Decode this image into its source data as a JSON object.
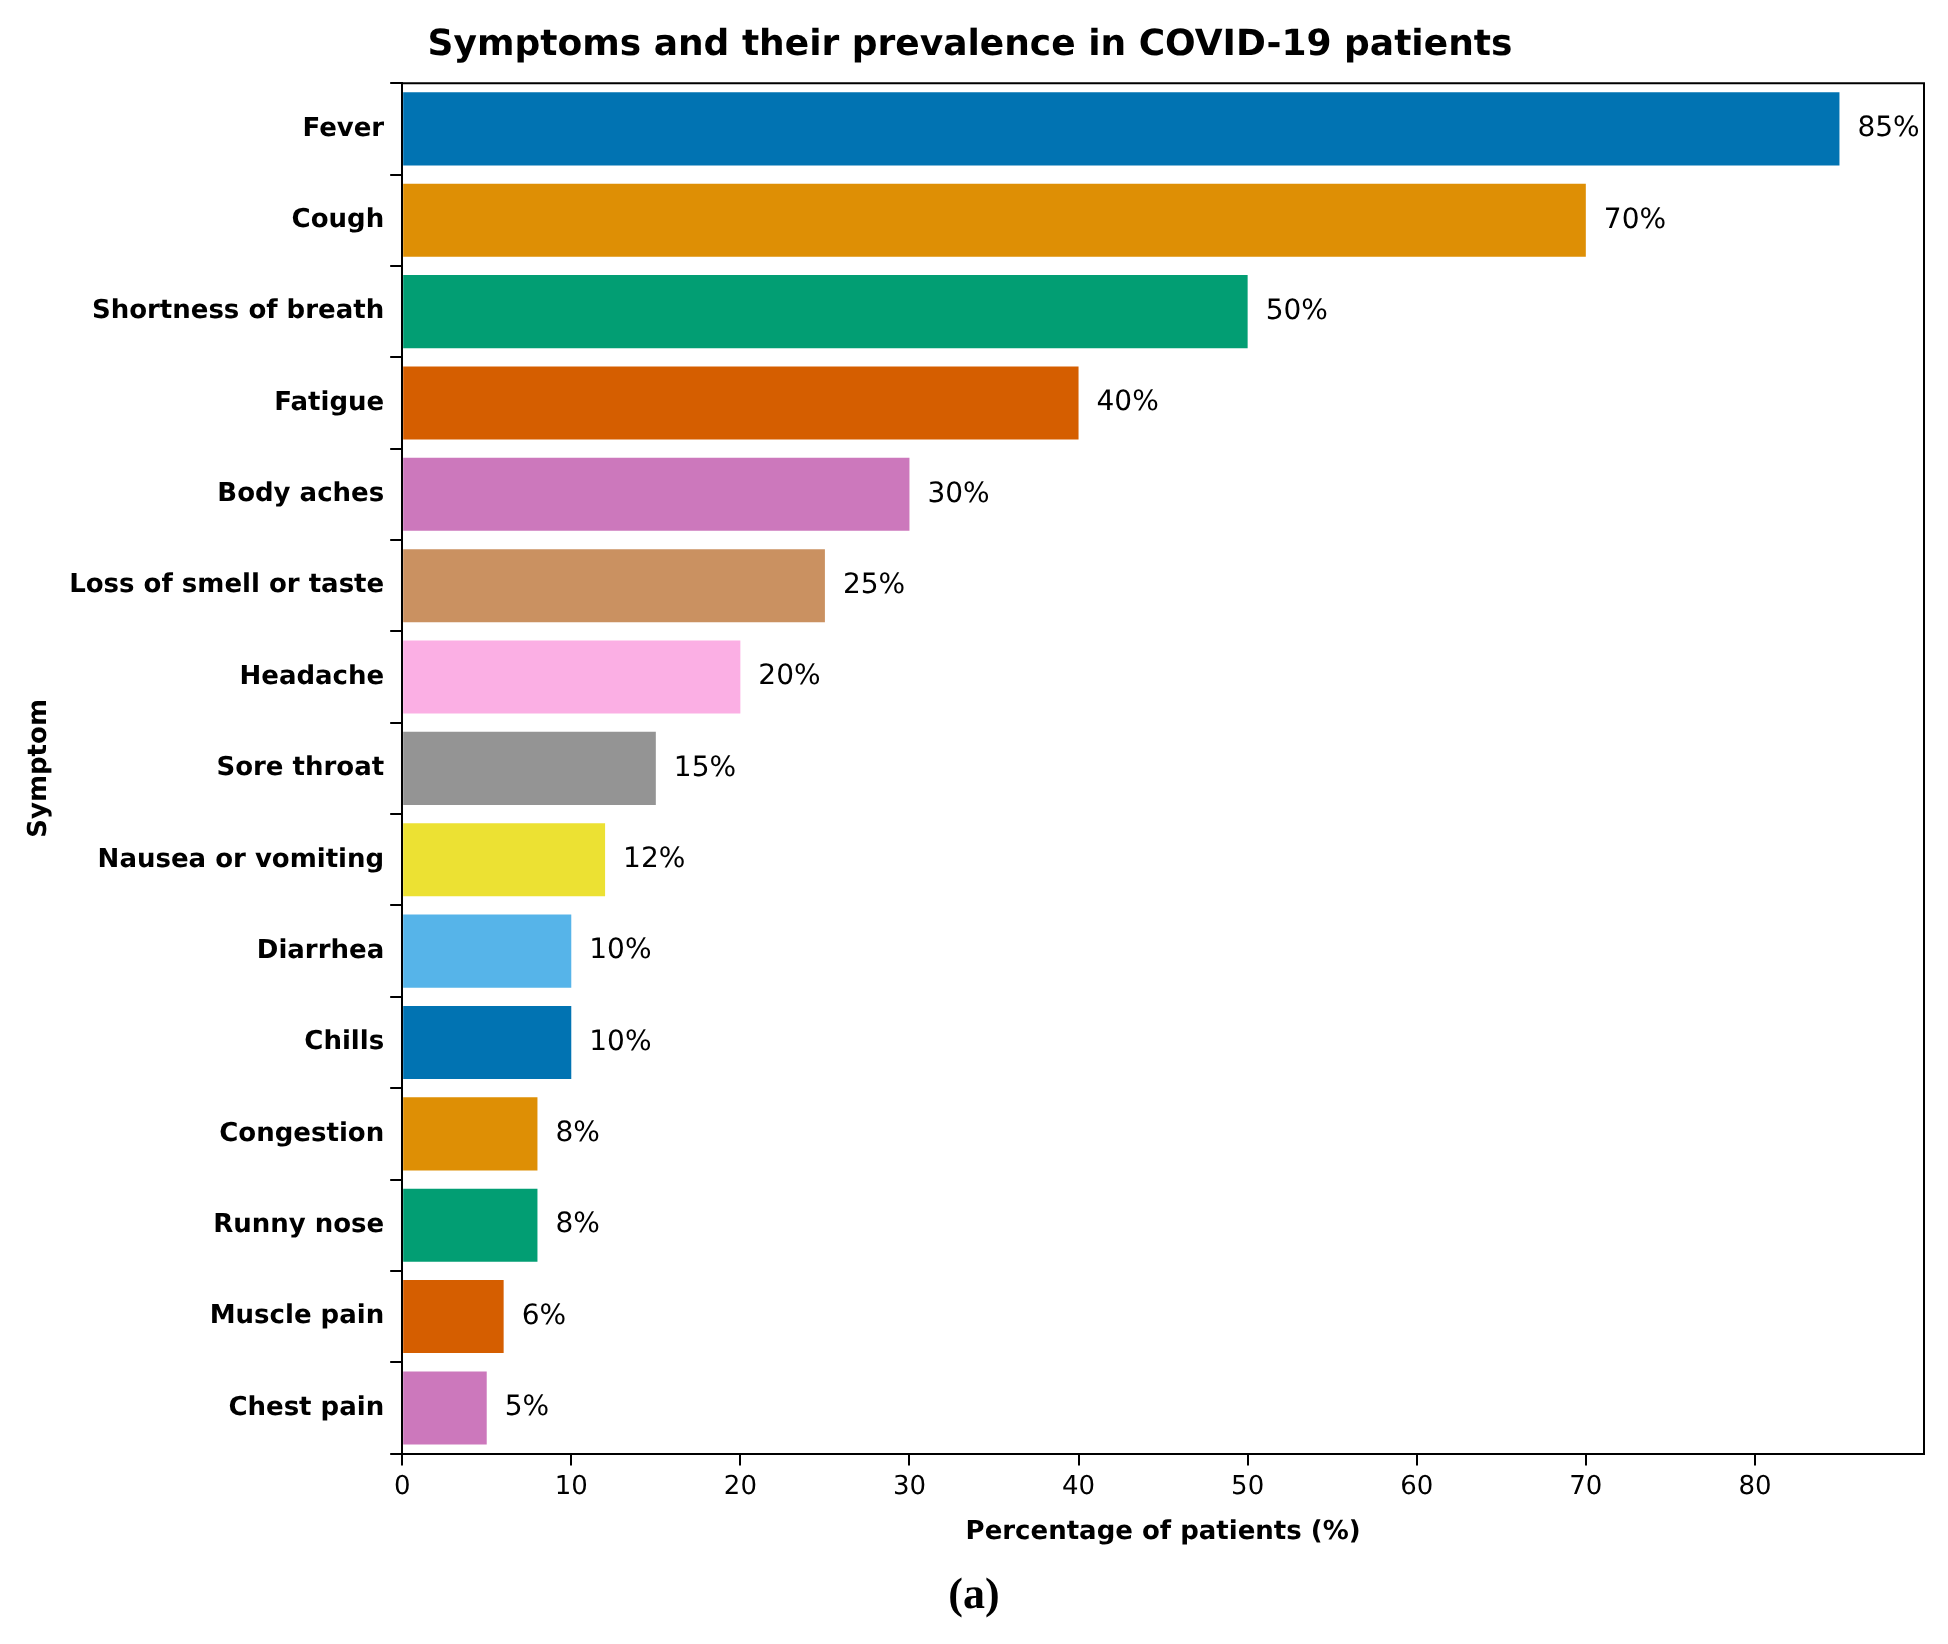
{
  "chart_data": {
    "type": "bar",
    "orientation": "horizontal",
    "title": "Symptoms and their prevalence in COVID-19 patients",
    "xlabel": "Percentage of patients (%)",
    "ylabel": "Symptom",
    "categories": [
      "Fever",
      "Cough",
      "Shortness of breath",
      "Fatigue",
      "Body aches",
      "Loss of smell or taste",
      "Headache",
      "Sore throat",
      "Nausea or vomiting",
      "Diarrhea",
      "Chills",
      "Congestion",
      "Runny nose",
      "Muscle pain",
      "Chest pain"
    ],
    "values": [
      85,
      70,
      50,
      40,
      30,
      25,
      20,
      15,
      12,
      10,
      10,
      8,
      8,
      6,
      5
    ],
    "colors": [
      "#0173b2",
      "#de8f05",
      "#029e73",
      "#d55e00",
      "#cc78bc",
      "#ca9161",
      "#fbafe4",
      "#949494",
      "#ece133",
      "#56b4e9",
      "#0173b2",
      "#de8f05",
      "#029e73",
      "#d55e00",
      "#cc78bc"
    ],
    "value_labels": [
      "85%",
      "70%",
      "50%",
      "40%",
      "30%",
      "25%",
      "20%",
      "15%",
      "12%",
      "10%",
      "10%",
      "8%",
      "8%",
      "6%",
      "5%"
    ],
    "xlim": [
      0,
      90
    ],
    "xticks": [
      0,
      10,
      20,
      30,
      40,
      50,
      60,
      70,
      80
    ],
    "grid": false,
    "legend": false,
    "annotations": [
      "(a)"
    ]
  }
}
